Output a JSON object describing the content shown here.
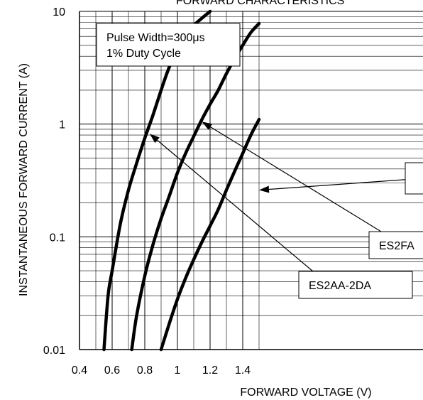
{
  "chart_data": {
    "type": "line",
    "title": "FORWARD CHARACTERISTICS",
    "xlabel": "FORWARD VOLTAGE (V)",
    "ylabel": "INSTANTANEOUS FORWARD CURRENT (A)",
    "xlim": [
      0.4,
      1.5
    ],
    "ylim": [
      0.01,
      10
    ],
    "yscale": "log",
    "grid": true,
    "x_ticks": [
      "0.4",
      "0.6",
      "0.8",
      "1",
      "1.2",
      "1.4"
    ],
    "x_tick_values": [
      0.4,
      0.6,
      0.8,
      1.0,
      1.2,
      1.4
    ],
    "y_ticks": [
      "0.01",
      "0.1",
      "1",
      "10"
    ],
    "y_tick_values": [
      0.01,
      0.1,
      1,
      10
    ],
    "annotation_box": [
      "Pulse Width=300μs",
      "1% Duty Cycle"
    ],
    "series": [
      {
        "name": "ES2AA-2DA",
        "points": [
          [
            0.55,
            0.01
          ],
          [
            0.575,
            0.03
          ],
          [
            0.6,
            0.05
          ],
          [
            0.65,
            0.13
          ],
          [
            0.7,
            0.26
          ],
          [
            0.75,
            0.45
          ],
          [
            0.8,
            0.75
          ],
          [
            0.85,
            1.2
          ],
          [
            0.9,
            2.0
          ],
          [
            0.95,
            3.2
          ],
          [
            1.0,
            4.5
          ],
          [
            1.05,
            6.0
          ],
          [
            1.1,
            7.5
          ],
          [
            1.2,
            10.0
          ]
        ]
      },
      {
        "name": "ES2FA",
        "points": [
          [
            0.72,
            0.01
          ],
          [
            0.75,
            0.02
          ],
          [
            0.8,
            0.045
          ],
          [
            0.85,
            0.085
          ],
          [
            0.9,
            0.145
          ],
          [
            0.95,
            0.23
          ],
          [
            1.0,
            0.37
          ],
          [
            1.05,
            0.55
          ],
          [
            1.1,
            0.78
          ],
          [
            1.15,
            1.1
          ],
          [
            1.2,
            1.5
          ],
          [
            1.25,
            2.0
          ],
          [
            1.3,
            2.8
          ],
          [
            1.35,
            3.8
          ],
          [
            1.4,
            5.0
          ],
          [
            1.45,
            6.5
          ],
          [
            1.5,
            7.8
          ]
        ]
      },
      {
        "name": "",
        "points": [
          [
            0.9,
            0.01
          ],
          [
            0.95,
            0.017
          ],
          [
            1.0,
            0.028
          ],
          [
            1.05,
            0.043
          ],
          [
            1.1,
            0.063
          ],
          [
            1.15,
            0.09
          ],
          [
            1.2,
            0.125
          ],
          [
            1.25,
            0.175
          ],
          [
            1.3,
            0.26
          ],
          [
            1.35,
            0.38
          ],
          [
            1.4,
            0.55
          ],
          [
            1.45,
            0.8
          ],
          [
            1.5,
            1.1
          ]
        ]
      }
    ],
    "callouts": [
      {
        "label": "ES2AA-2DA",
        "target": [
          0.83,
          0.82
        ]
      },
      {
        "label": "ES2FA",
        "target": [
          1.15,
          1.05
        ]
      },
      {
        "label": "",
        "target": [
          1.5,
          0.26
        ]
      }
    ]
  }
}
